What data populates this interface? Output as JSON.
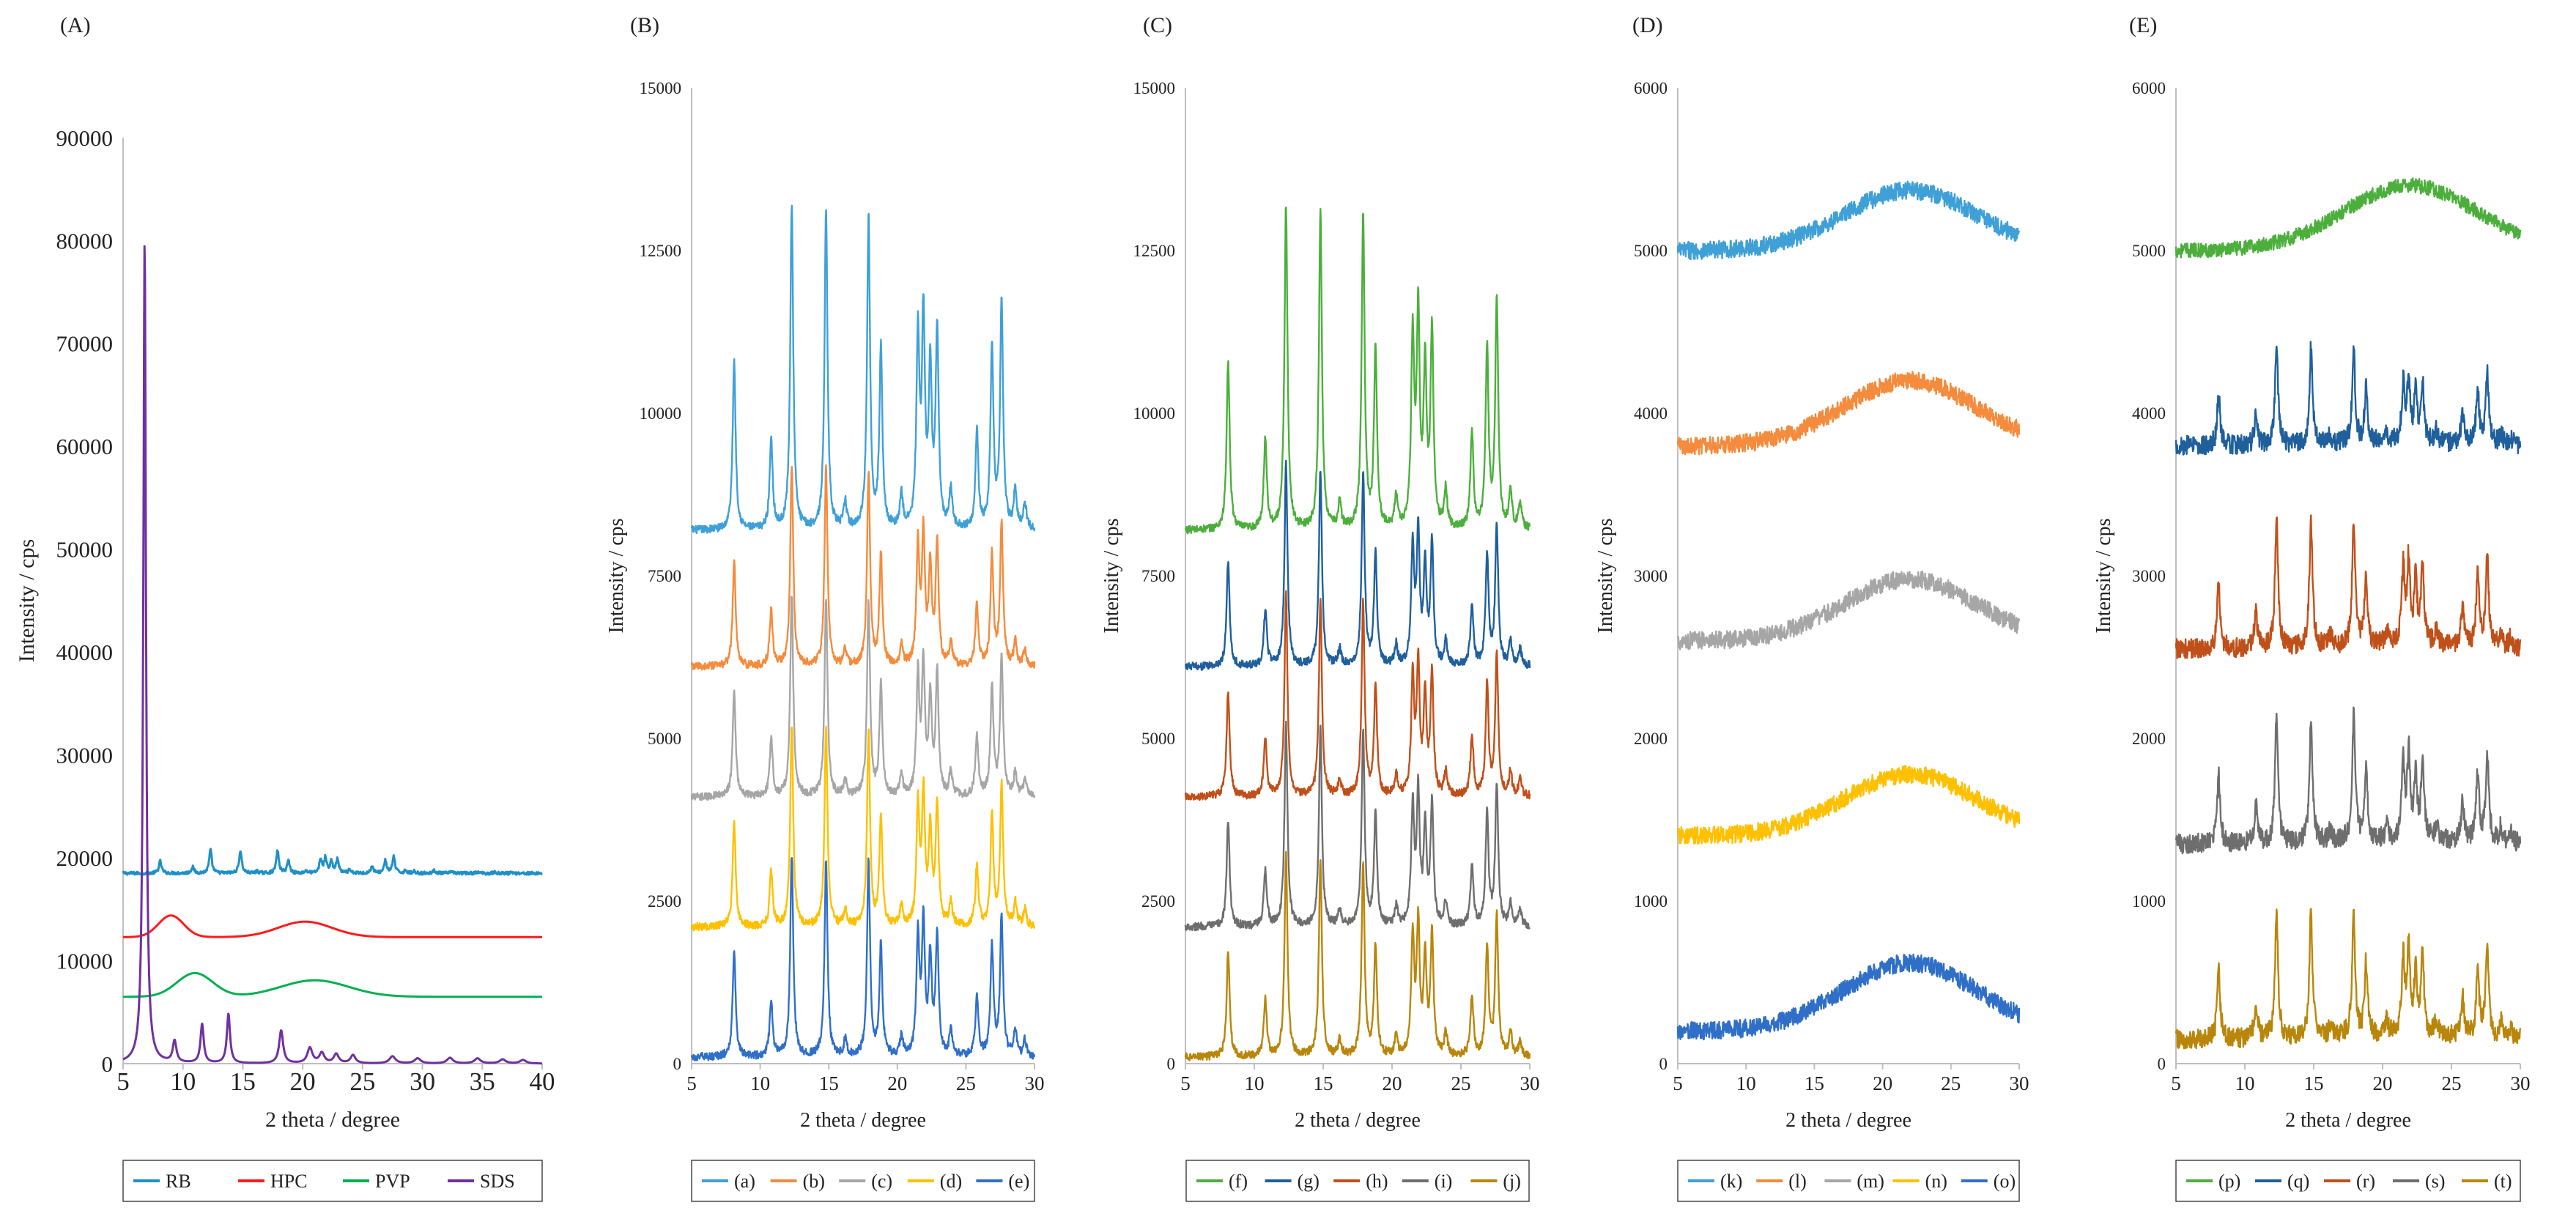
{
  "chart_data": [
    {
      "panel": "(A)",
      "type": "line",
      "xlabel": "2 theta / degree",
      "ylabel": "Intensity / cps",
      "xlim": [
        5,
        40
      ],
      "ylim": [
        0,
        90000
      ],
      "xticks": [
        "5",
        "10",
        "15",
        "20",
        "25",
        "30",
        "35",
        "40"
      ],
      "yticks": [
        "0",
        "10000",
        "20000",
        "30000",
        "40000",
        "50000",
        "60000",
        "70000",
        "80000",
        "90000"
      ],
      "legend_position": "bottom",
      "series": [
        {
          "name": "RB",
          "color": "#1e90c8",
          "kind": "crystalline",
          "baseline": 18500,
          "scale": 0.45,
          "noise": 150
        },
        {
          "name": "HPC",
          "color": "#ff1a1a",
          "kind": "hpc",
          "baseline": 12300
        },
        {
          "name": "PVP",
          "color": "#00b050",
          "kind": "pvp",
          "baseline": 6500
        },
        {
          "name": "SDS",
          "color": "#7030a0",
          "kind": "sds",
          "baseline": 0
        }
      ]
    },
    {
      "panel": "(B)",
      "type": "line",
      "xlabel": "2 theta / degree",
      "ylabel": "Intensity / cps",
      "xlim": [
        5,
        30
      ],
      "ylim": [
        0,
        15000
      ],
      "xticks": [
        "5",
        "10",
        "15",
        "20",
        "25",
        "30"
      ],
      "yticks": [
        "0",
        "2500",
        "5000",
        "7500",
        "10000",
        "12500",
        "15000"
      ],
      "legend_position": "bottom",
      "series": [
        {
          "name": "(a)",
          "color": "#3fa0d8",
          "kind": "crystalline",
          "baseline": 8200,
          "scale": 1.0,
          "noise": 60
        },
        {
          "name": "(b)",
          "color": "#f58b3c",
          "kind": "crystalline",
          "baseline": 6100,
          "scale": 0.62,
          "noise": 60
        },
        {
          "name": "(c)",
          "color": "#a6a6a6",
          "kind": "crystalline",
          "baseline": 4100,
          "scale": 0.62,
          "noise": 60
        },
        {
          "name": "(d)",
          "color": "#ffc000",
          "kind": "crystalline",
          "baseline": 2100,
          "scale": 0.62,
          "noise": 60
        },
        {
          "name": "(e)",
          "color": "#2f6fc8",
          "kind": "crystalline",
          "baseline": 100,
          "scale": 0.62,
          "noise": 60
        }
      ]
    },
    {
      "panel": "(C)",
      "type": "line",
      "xlabel": "2 theta / degree",
      "ylabel": "Intensity / cps",
      "xlim": [
        5,
        30
      ],
      "ylim": [
        0,
        15000
      ],
      "xticks": [
        "5",
        "10",
        "15",
        "20",
        "25",
        "30"
      ],
      "yticks": [
        "0",
        "2500",
        "5000",
        "7500",
        "10000",
        "12500",
        "15000"
      ],
      "legend_position": "bottom",
      "series": [
        {
          "name": "(f)",
          "color": "#4caf3c",
          "kind": "crystalline",
          "baseline": 8200,
          "scale": 1.0,
          "noise": 60
        },
        {
          "name": "(g)",
          "color": "#1f5f9c",
          "kind": "crystalline",
          "baseline": 6100,
          "scale": 0.62,
          "noise": 60
        },
        {
          "name": "(h)",
          "color": "#c0501a",
          "kind": "crystalline",
          "baseline": 4100,
          "scale": 0.62,
          "noise": 60
        },
        {
          "name": "(i)",
          "color": "#6e6e6e",
          "kind": "crystalline",
          "baseline": 2100,
          "scale": 0.62,
          "noise": 60
        },
        {
          "name": "(j)",
          "color": "#b8860b",
          "kind": "crystalline",
          "baseline": 100,
          "scale": 0.62,
          "noise": 60
        }
      ]
    },
    {
      "panel": "(D)",
      "type": "line",
      "xlabel": "2 theta / degree",
      "ylabel": "Intensity / cps",
      "xlim": [
        5,
        30
      ],
      "ylim": [
        0,
        6000
      ],
      "xticks": [
        "5",
        "10",
        "15",
        "20",
        "25",
        "30"
      ],
      "yticks": [
        "0",
        "1000",
        "2000",
        "3000",
        "4000",
        "5000",
        "6000"
      ],
      "legend_position": "bottom",
      "series": [
        {
          "name": "(k)",
          "color": "#3fa0d8",
          "kind": "amorphous",
          "baseline": 5000,
          "amp": 370,
          "noise": 55
        },
        {
          "name": "(l)",
          "color": "#f58b3c",
          "kind": "amorphous",
          "baseline": 3800,
          "amp": 400,
          "noise": 55
        },
        {
          "name": "(m)",
          "color": "#a6a6a6",
          "kind": "amorphous",
          "baseline": 2600,
          "amp": 380,
          "noise": 55
        },
        {
          "name": "(n)",
          "color": "#ffc000",
          "kind": "amorphous",
          "baseline": 1400,
          "amp": 380,
          "noise": 55
        },
        {
          "name": "(o)",
          "color": "#2f6fc8",
          "kind": "amorphous",
          "baseline": 200,
          "amp": 420,
          "noise": 55
        }
      ]
    },
    {
      "panel": "(E)",
      "type": "line",
      "xlabel": "2 theta / degree",
      "ylabel": "Intensity / cps",
      "xlim": [
        5,
        30
      ],
      "ylim": [
        0,
        6000
      ],
      "xticks": [
        "5",
        "10",
        "15",
        "20",
        "25",
        "30"
      ],
      "yticks": [
        "0",
        "1000",
        "2000",
        "3000",
        "4000",
        "5000",
        "6000"
      ],
      "legend_position": "bottom",
      "series": [
        {
          "name": "(p)",
          "color": "#4caf3c",
          "kind": "amorphous",
          "baseline": 5000,
          "amp": 400,
          "noise": 45
        },
        {
          "name": "(q)",
          "color": "#1f5f9c",
          "kind": "crystalline",
          "baseline": 3800,
          "scale": 0.12,
          "noise": 60,
          "hump": 150
        },
        {
          "name": "(r)",
          "color": "#c0501a",
          "kind": "crystalline",
          "baseline": 2550,
          "scale": 0.16,
          "noise": 60,
          "hump": 150
        },
        {
          "name": "(s)",
          "color": "#6e6e6e",
          "kind": "crystalline",
          "baseline": 1350,
          "scale": 0.16,
          "noise": 60,
          "hump": 150
        },
        {
          "name": "(t)",
          "color": "#b8860b",
          "kind": "crystalline",
          "baseline": 150,
          "scale": 0.16,
          "noise": 60,
          "hump": 150
        }
      ]
    }
  ]
}
